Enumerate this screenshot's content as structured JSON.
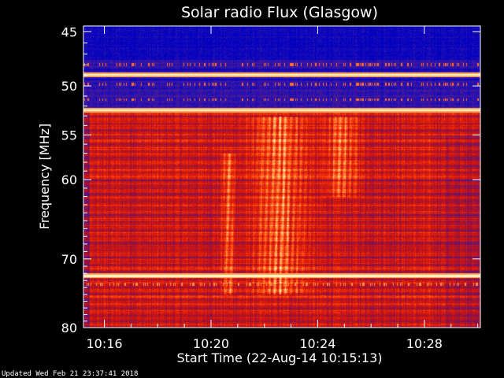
{
  "chart_data": {
    "type": "heatmap",
    "title": "Solar radio Flux (Glasgow)",
    "xlabel": "Start Time (22-Aug-14 10:15:13)",
    "ylabel": "Frequency [MHz]",
    "x_tick_labels": [
      "10:16",
      "10:20",
      "10:24",
      "10:28"
    ],
    "x_tick_minutes": [
      16,
      20,
      24,
      28
    ],
    "x_range_minutes": [
      15.2167,
      30.1
    ],
    "y_tick_labels": [
      "45",
      "50",
      "55",
      "60",
      "70",
      "80"
    ],
    "y_tick_values": [
      45,
      50,
      55,
      60,
      70,
      80
    ],
    "ylim": [
      44.5,
      80.0
    ],
    "y_scale": "log",
    "y_direction": "inverted",
    "colormap": [
      "#0000c0",
      "#3a1aa8",
      "#a01030",
      "#dd1808",
      "#ff5010",
      "#ffb060",
      "#ffffd0"
    ],
    "background_color": "#000000",
    "interference_bands_mhz": [
      48.9,
      52.4,
      72.3
    ],
    "burst_regions": [
      {
        "start_minute": 20.3,
        "end_minute": 21.0,
        "freq_low_mhz": 57,
        "freq_high_mhz": 75,
        "intensity": 0.8
      },
      {
        "start_minute": 21.2,
        "end_minute": 24.0,
        "freq_low_mhz": 53,
        "freq_high_mhz": 75,
        "intensity": 0.9
      },
      {
        "start_minute": 24.0,
        "end_minute": 25.8,
        "freq_low_mhz": 53,
        "freq_high_mhz": 62,
        "intensity": 0.7
      }
    ]
  },
  "footer": {
    "updated_text": "Updated Wed Feb 21 23:37:41 2018"
  }
}
